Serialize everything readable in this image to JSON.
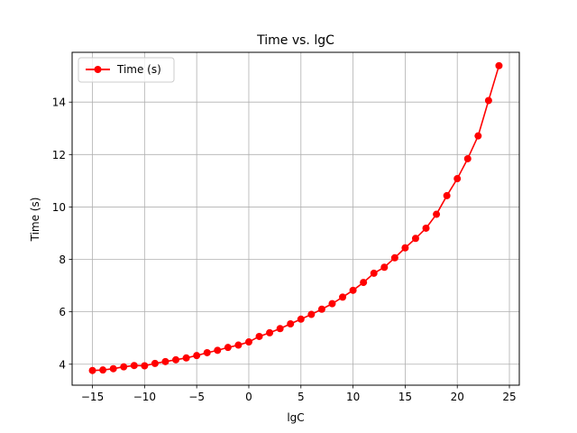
{
  "chart_data": {
    "type": "line",
    "title": "Time vs. lgC",
    "xlabel": "lgC",
    "ylabel": "Time (s)",
    "xlim": [
      -16.95,
      25.95
    ],
    "ylim": [
      3.2,
      15.9
    ],
    "x_ticks": [
      -15,
      -10,
      -5,
      0,
      5,
      10,
      15,
      20,
      25
    ],
    "x_tick_labels": [
      "−15",
      "−10",
      "−5",
      "0",
      "5",
      "10",
      "15",
      "20",
      "25"
    ],
    "y_ticks": [
      4,
      6,
      8,
      10,
      12,
      14
    ],
    "y_tick_labels": [
      "4",
      "6",
      "8",
      "10",
      "12",
      "14"
    ],
    "grid": true,
    "legend_position": "upper-left",
    "series": [
      {
        "name": "Time (s)",
        "color": "#ff0000",
        "marker": "circle",
        "x": [
          -15,
          -14,
          -13,
          -12,
          -11,
          -10,
          -9,
          -8,
          -7,
          -6,
          -5,
          -4,
          -3,
          -2,
          -1,
          0,
          1,
          2,
          3,
          4,
          5,
          6,
          7,
          8,
          9,
          10,
          11,
          12,
          13,
          14,
          15,
          16,
          17,
          18,
          19,
          20,
          21,
          22,
          23,
          24
        ],
        "y": [
          3.76,
          3.78,
          3.83,
          3.9,
          3.95,
          3.94,
          4.03,
          4.1,
          4.17,
          4.24,
          4.33,
          4.44,
          4.53,
          4.64,
          4.73,
          4.85,
          5.06,
          5.2,
          5.36,
          5.54,
          5.72,
          5.9,
          6.1,
          6.31,
          6.56,
          6.82,
          7.12,
          7.47,
          7.7,
          8.06,
          8.44,
          8.8,
          9.19,
          9.72,
          10.43,
          11.08,
          11.84,
          12.71,
          14.06,
          15.39
        ]
      }
    ]
  }
}
